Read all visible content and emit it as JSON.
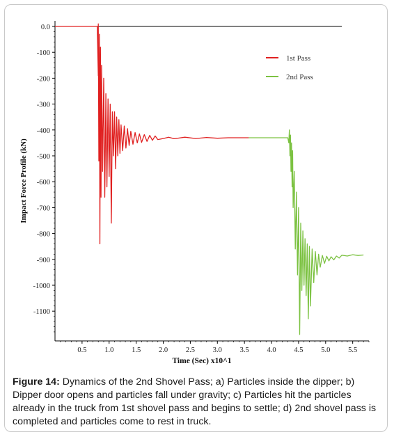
{
  "figure": {
    "caption_label": "Figure 14:",
    "caption_text": " Dynamics of the 2nd Shovel Pass; a) Particles inside the dipper; b) Dipper door opens and particles fall under gravity; c) Particles hit the particles already in the truck from 1st shovel pass and begins to settle; d) 2nd shovel pass is completed and particles come to rest in truck."
  },
  "chart_data": {
    "type": "line",
    "xlabel": "Time (Sec) x10^1",
    "ylabel": "Impact Force Profile (kN)",
    "xlim": [
      0.0,
      5.8
    ],
    "ylim": [
      -1200,
      0
    ],
    "x_ticks": [
      "0.5",
      "1.0",
      "1.5",
      "2.0",
      "2.5",
      "3.0",
      "3.5",
      "4.0",
      "4.5",
      "5.0",
      "5.5"
    ],
    "x_tick_values": [
      0.5,
      1.0,
      1.5,
      2.0,
      2.5,
      3.0,
      3.5,
      4.0,
      4.5,
      5.0,
      5.5
    ],
    "y_ticks": [
      "0.0",
      "-100",
      "-200",
      "-300",
      "-400",
      "-500",
      "-600",
      "-700",
      "-800",
      "-900",
      "-1000",
      "-1100"
    ],
    "y_tick_values": [
      0,
      -100,
      -200,
      -300,
      -400,
      -500,
      -600,
      -700,
      -800,
      -900,
      -1000,
      -1100
    ],
    "reference_line": {
      "y": 0,
      "x": [
        0.0,
        5.3
      ],
      "color": "#000000"
    },
    "legend_position": "top-right",
    "series": [
      {
        "name": "1st Pass",
        "color": "#e02020",
        "x": [
          0.0,
          0.78,
          0.8,
          0.8,
          0.81,
          0.82,
          0.83,
          0.84,
          0.85,
          0.86,
          0.88,
          0.9,
          0.92,
          0.94,
          0.96,
          0.98,
          1.0,
          1.02,
          1.04,
          1.06,
          1.08,
          1.1,
          1.12,
          1.14,
          1.16,
          1.18,
          1.2,
          1.22,
          1.25,
          1.28,
          1.31,
          1.34,
          1.37,
          1.4,
          1.44,
          1.48,
          1.52,
          1.56,
          1.6,
          1.65,
          1.7,
          1.75,
          1.8,
          1.85,
          1.9,
          2.0,
          2.1,
          2.2,
          2.4,
          2.6,
          2.8,
          3.0,
          3.2,
          3.4,
          3.58
        ],
        "y": [
          0,
          0,
          -190,
          10,
          -520,
          -30,
          -840,
          -80,
          -660,
          -150,
          -560,
          -200,
          -660,
          -260,
          -620,
          -280,
          -580,
          -300,
          -760,
          -330,
          -500,
          -330,
          -550,
          -350,
          -500,
          -360,
          -490,
          -380,
          -480,
          -385,
          -470,
          -395,
          -460,
          -405,
          -455,
          -410,
          -450,
          -415,
          -448,
          -418,
          -444,
          -421,
          -440,
          -423,
          -437,
          -433,
          -428,
          -434,
          -428,
          -433,
          -429,
          -432,
          -430,
          -430,
          -430
        ]
      },
      {
        "name": "2nd Pass",
        "color": "#7cc242",
        "x": [
          3.58,
          4.3,
          4.32,
          4.33,
          4.34,
          4.35,
          4.36,
          4.37,
          4.38,
          4.39,
          4.4,
          4.42,
          4.44,
          4.46,
          4.48,
          4.5,
          4.52,
          4.54,
          4.56,
          4.58,
          4.6,
          4.62,
          4.64,
          4.66,
          4.68,
          4.7,
          4.72,
          4.75,
          4.78,
          4.81,
          4.84,
          4.87,
          4.9,
          4.94,
          4.98,
          5.02,
          5.06,
          5.1,
          5.15,
          5.2,
          5.25,
          5.3,
          5.4,
          5.5,
          5.6,
          5.7
        ],
        "y": [
          -430,
          -430,
          -450,
          -400,
          -500,
          -420,
          -560,
          -450,
          -620,
          -480,
          -700,
          -560,
          -860,
          -640,
          -960,
          -700,
          -1190,
          -760,
          -1020,
          -790,
          -1000,
          -820,
          -1040,
          -840,
          -1130,
          -850,
          -1080,
          -860,
          -990,
          -870,
          -960,
          -880,
          -930,
          -885,
          -915,
          -888,
          -906,
          -890,
          -902,
          -887,
          -895,
          -884,
          -887,
          -882,
          -885,
          -883
        ]
      }
    ]
  }
}
